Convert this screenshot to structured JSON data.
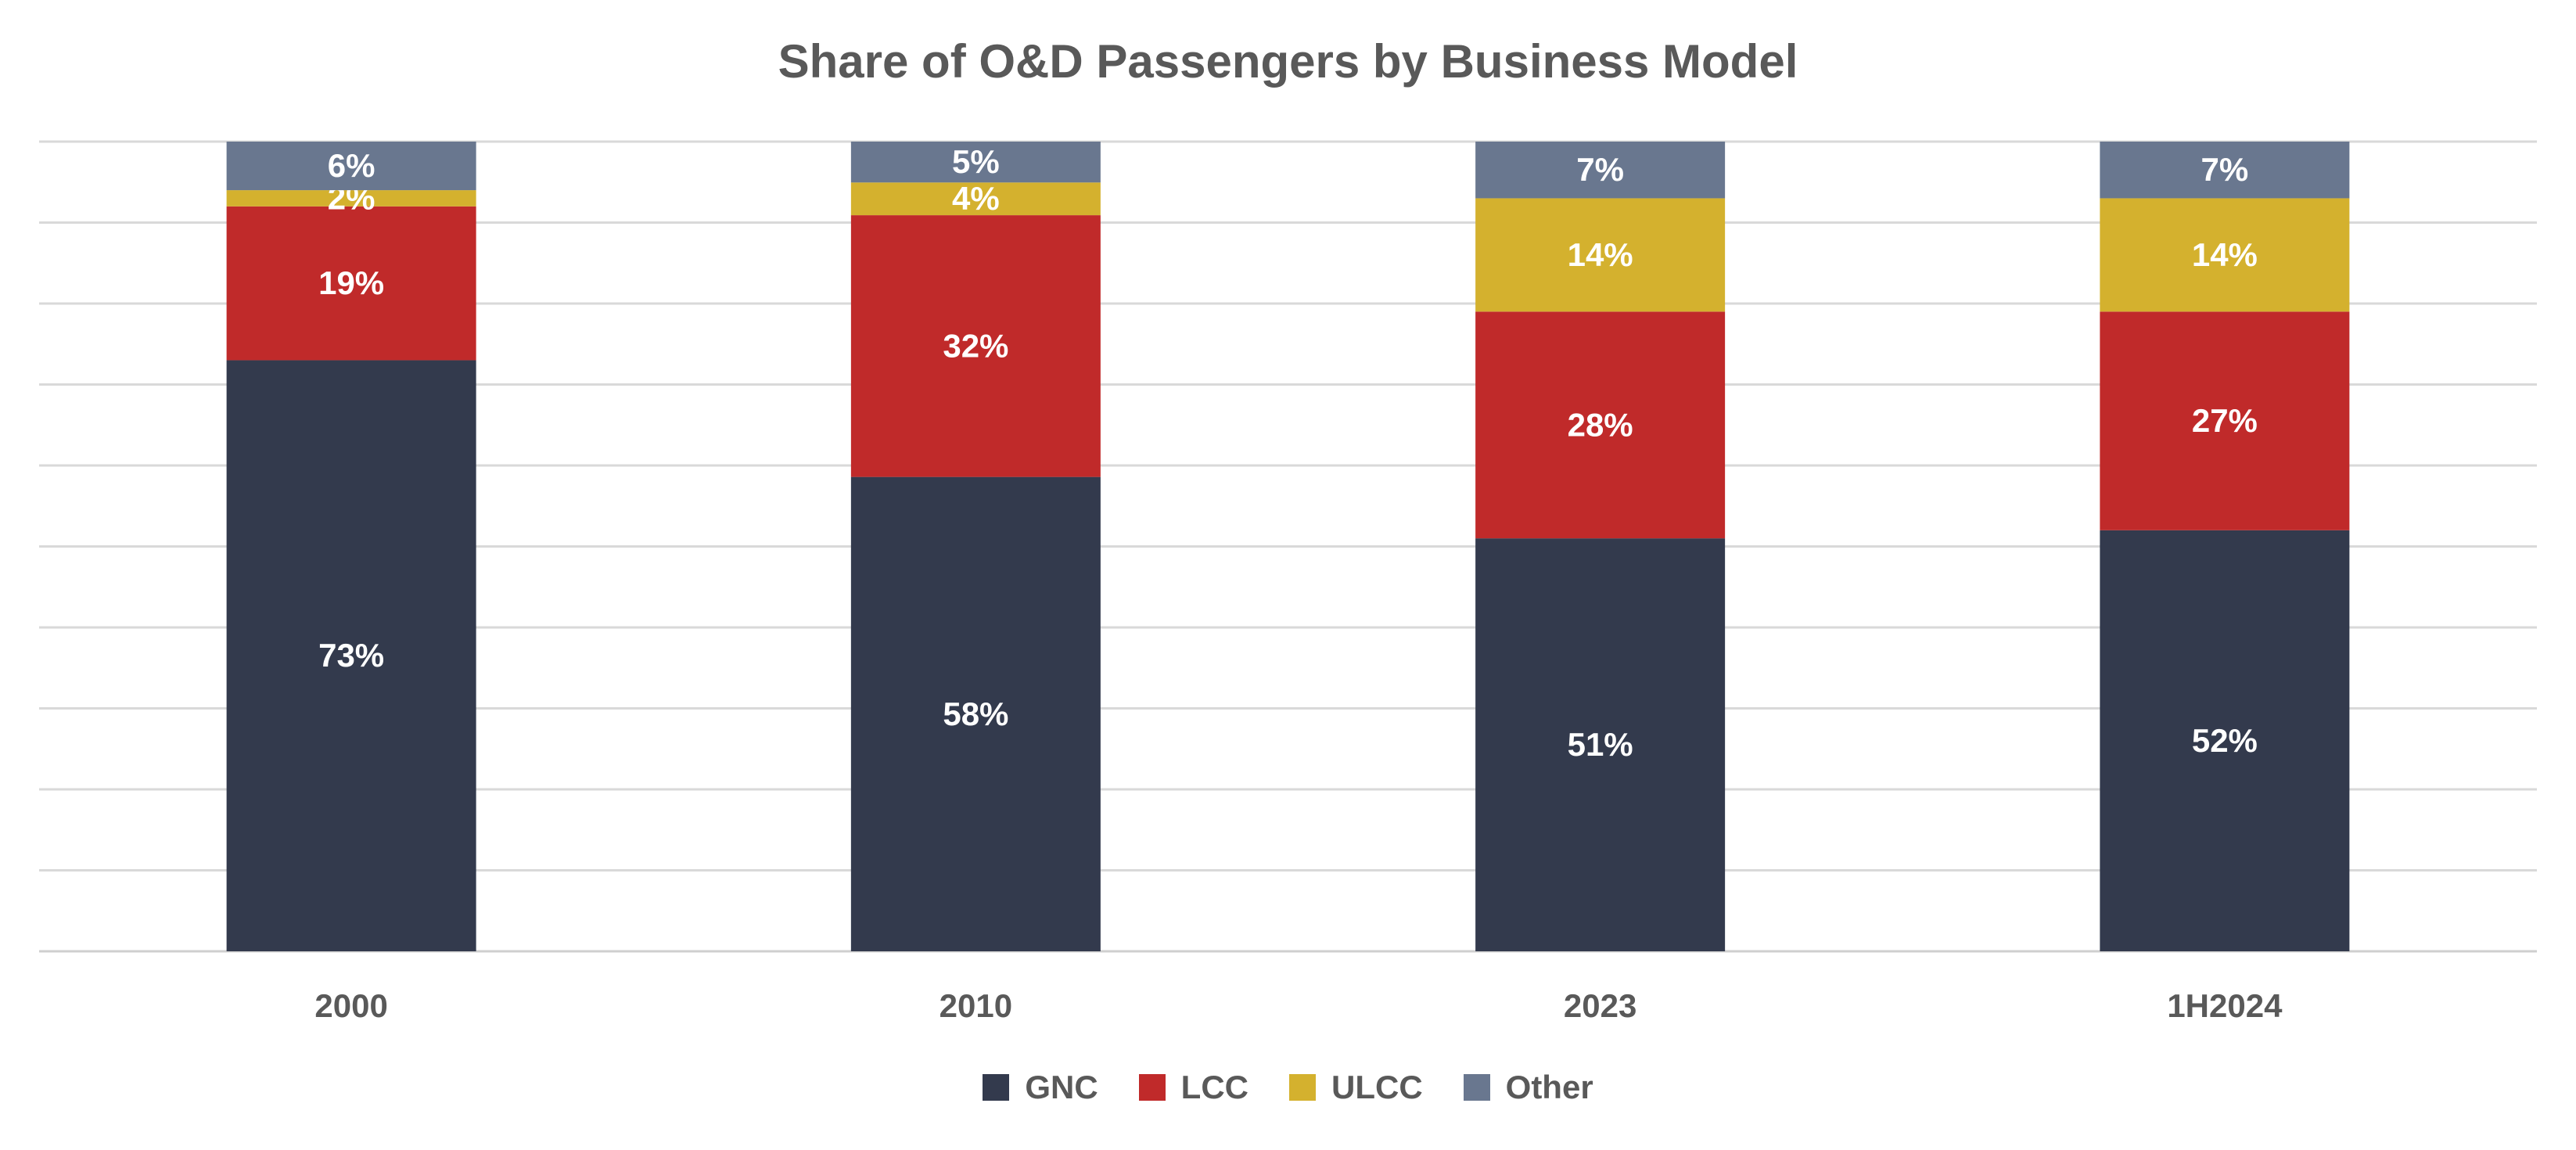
{
  "chart_data": {
    "type": "bar",
    "stacked": true,
    "title": "Share of O&D Passengers by Business Model",
    "xlabel": "",
    "ylabel": "",
    "ylim": [
      0,
      100
    ],
    "grid": true,
    "legend_position": "bottom",
    "categories": [
      "2000",
      "2010",
      "2023",
      "1H2024"
    ],
    "series": [
      {
        "name": "GNC",
        "color": "#333A4D",
        "values": [
          73,
          58,
          51,
          52
        ]
      },
      {
        "name": "LCC",
        "color": "#C02A2A",
        "values": [
          19,
          32,
          28,
          27
        ]
      },
      {
        "name": "ULCC",
        "color": "#D4B12E",
        "values": [
          2,
          4,
          14,
          14
        ]
      },
      {
        "name": "Other",
        "color": "#69778F",
        "values": [
          6,
          5,
          7,
          7
        ]
      }
    ],
    "value_suffix": "%"
  }
}
